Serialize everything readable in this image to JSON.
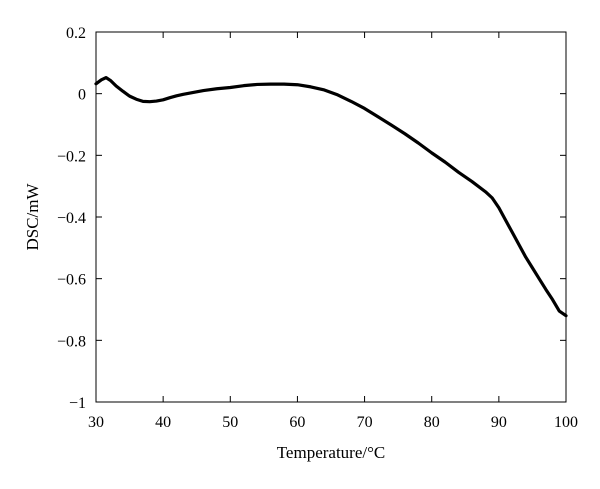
{
  "chart_data": {
    "type": "line",
    "title": "",
    "xlabel": "Temperature/°C",
    "ylabel": "DSC/mW",
    "xlim": [
      30,
      100
    ],
    "ylim": [
      -1,
      0.2
    ],
    "x_ticks": [
      30,
      40,
      50,
      60,
      70,
      80,
      90,
      100
    ],
    "x_tick_labels": [
      "30",
      "40",
      "50",
      "60",
      "70",
      "80",
      "90",
      "100"
    ],
    "y_ticks": [
      0.2,
      0,
      -0.2,
      -0.4,
      -0.6,
      -0.8,
      -1
    ],
    "y_tick_labels": [
      "0.2",
      "0",
      "−0.2",
      "−0.4",
      "−0.6",
      "−0.8",
      "−1"
    ],
    "grid": false,
    "legend": false,
    "line_color": "#000000",
    "series": [
      {
        "x": [
          30,
          30.8,
          31.5,
          32.2,
          33,
          34,
          35,
          36,
          37,
          38,
          39,
          40,
          41,
          42,
          43,
          44,
          45,
          46,
          48,
          50,
          52,
          54,
          56,
          58,
          60,
          62,
          64,
          66,
          68,
          70,
          72,
          74,
          76,
          78,
          80,
          82,
          84,
          86,
          88,
          89,
          90,
          91,
          92,
          93,
          94,
          95,
          96,
          97,
          98,
          99,
          100
        ],
        "y": [
          0.032,
          0.045,
          0.052,
          0.042,
          0.025,
          0.008,
          -0.008,
          -0.018,
          -0.025,
          -0.026,
          -0.024,
          -0.02,
          -0.013,
          -0.007,
          -0.002,
          0.002,
          0.006,
          0.01,
          0.016,
          0.02,
          0.026,
          0.03,
          0.031,
          0.031,
          0.029,
          0.022,
          0.012,
          -0.004,
          -0.025,
          -0.048,
          -0.075,
          -0.102,
          -0.13,
          -0.16,
          -0.192,
          -0.222,
          -0.255,
          -0.285,
          -0.318,
          -0.338,
          -0.37,
          -0.41,
          -0.45,
          -0.49,
          -0.53,
          -0.565,
          -0.6,
          -0.635,
          -0.668,
          -0.705,
          -0.72
        ]
      }
    ]
  }
}
